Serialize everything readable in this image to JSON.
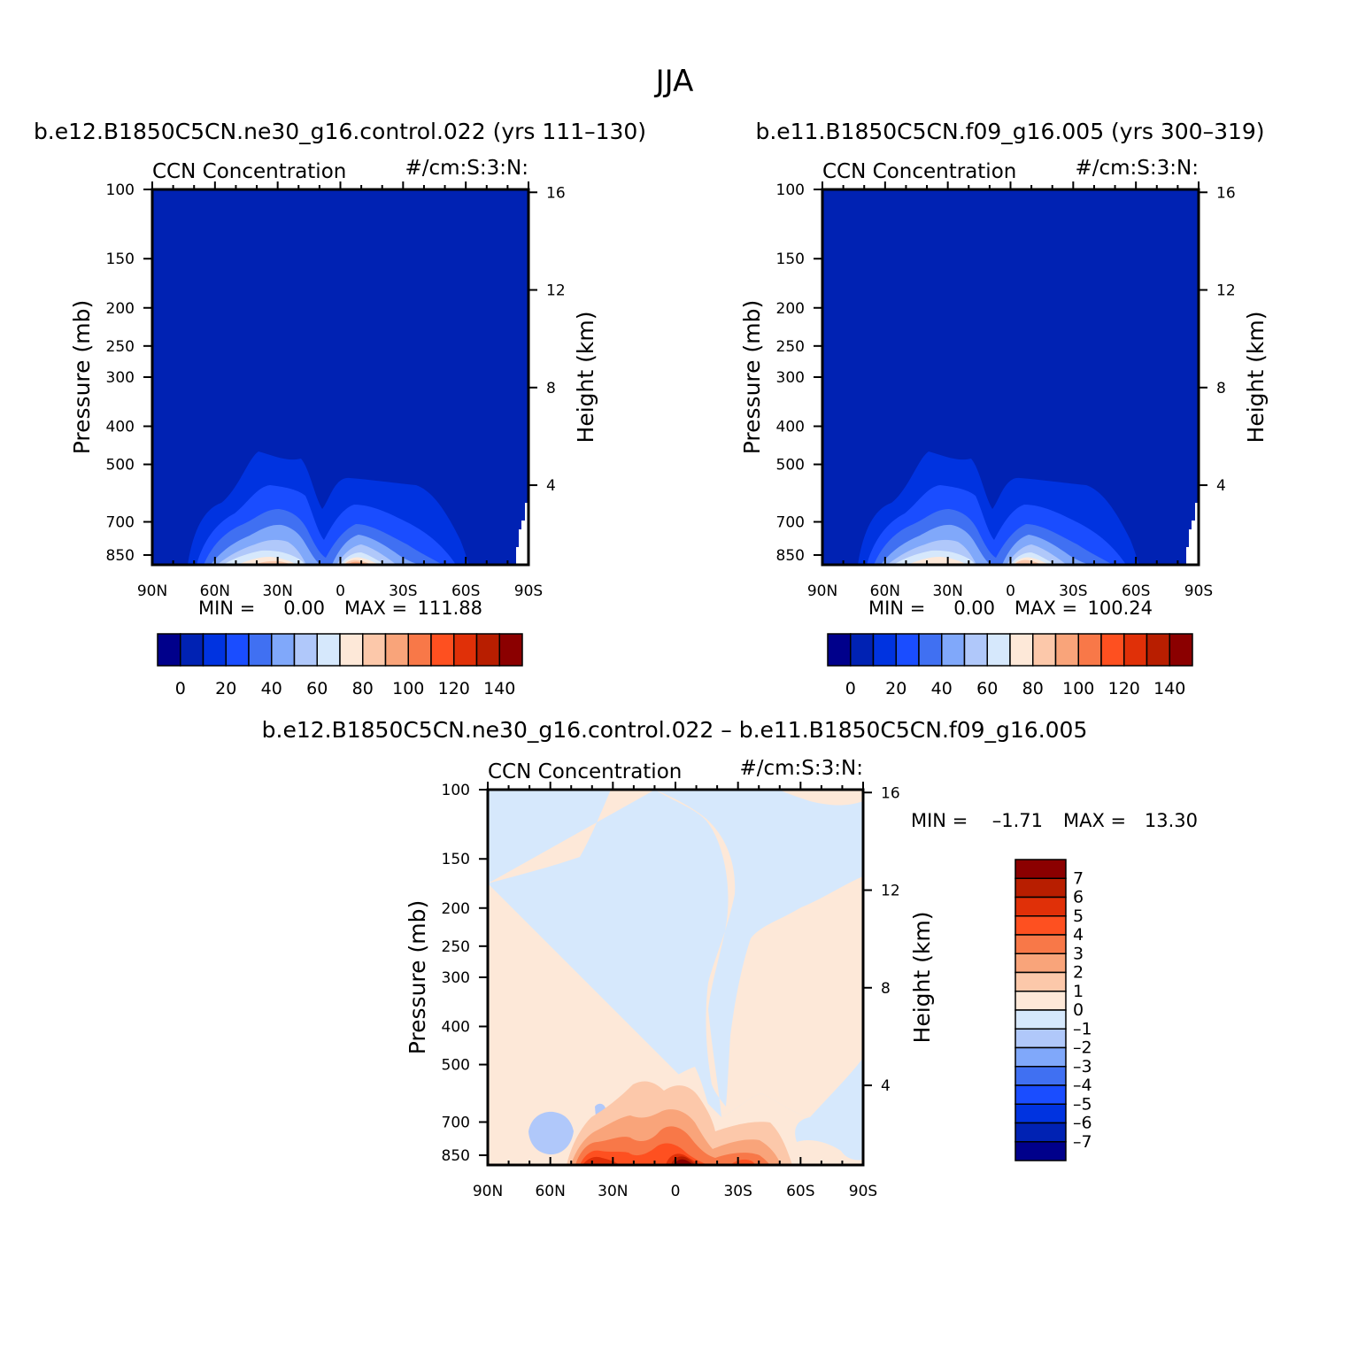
{
  "figure": {
    "title": "JJA",
    "diff_title": "b.e12.B1850C5CN.ne30_g16.control.022 – b.e11.B1850C5CN.f09_g16.005"
  },
  "chart_data": [
    {
      "type": "heatmap",
      "title": "b.e12.B1850C5CN.ne30_g16.control.022 (yrs 111–130)",
      "subtitle_left": "CCN Concentration",
      "subtitle_right": "#/cm:S:3:N:",
      "xlabel": "",
      "ylabel": "Pressure (mb)",
      "ylabel_right": "Height (km)",
      "x_ticks": [
        "90N",
        "60N",
        "30N",
        "0",
        "30S",
        "60S",
        "90S"
      ],
      "y_ticks": [
        "100",
        "150",
        "200",
        "250",
        "300",
        "400",
        "500",
        "700",
        "850"
      ],
      "y_ticks_right": [
        "16",
        "12",
        "8",
        "4"
      ],
      "min_label": "MIN =",
      "min_value": "0.00",
      "max_label": "MAX =",
      "max_value": "111.88",
      "levels": [
        "0",
        "20",
        "40",
        "60",
        "80",
        "100",
        "120",
        "140"
      ],
      "colors": [
        "#00008b",
        "#0022b3",
        "#0033e0",
        "#1a4dff",
        "#4070f2",
        "#80a8fa",
        "#b0c8fa",
        "#d6e8fc",
        "#fde8d8",
        "#fcc8aa",
        "#f9a47a",
        "#f87848",
        "#fe5020",
        "#e03008",
        "#b81e00",
        "#8b0000"
      ]
    },
    {
      "type": "heatmap",
      "title": "b.e11.B1850C5CN.f09_g16.005 (yrs 300–319)",
      "subtitle_left": "CCN Concentration",
      "subtitle_right": "#/cm:S:3:N:",
      "xlabel": "",
      "ylabel": "Pressure (mb)",
      "ylabel_right": "Height (km)",
      "x_ticks": [
        "90N",
        "60N",
        "30N",
        "0",
        "30S",
        "60S",
        "90S"
      ],
      "y_ticks": [
        "100",
        "150",
        "200",
        "250",
        "300",
        "400",
        "500",
        "700",
        "850"
      ],
      "y_ticks_right": [
        "16",
        "12",
        "8",
        "4"
      ],
      "min_label": "MIN =",
      "min_value": "0.00",
      "max_label": "MAX =",
      "max_value": "100.24",
      "levels": [
        "0",
        "20",
        "40",
        "60",
        "80",
        "100",
        "120",
        "140"
      ],
      "colors": [
        "#00008b",
        "#0022b3",
        "#0033e0",
        "#1a4dff",
        "#4070f2",
        "#80a8fa",
        "#b0c8fa",
        "#d6e8fc",
        "#fde8d8",
        "#fcc8aa",
        "#f9a47a",
        "#f87848",
        "#fe5020",
        "#e03008",
        "#b81e00",
        "#8b0000"
      ]
    },
    {
      "type": "heatmap",
      "title": "",
      "subtitle_left": "CCN Concentration",
      "subtitle_right": "#/cm:S:3:N:",
      "xlabel": "",
      "ylabel": "Pressure (mb)",
      "ylabel_right": "Height (km)",
      "x_ticks": [
        "90N",
        "60N",
        "30N",
        "0",
        "30S",
        "60S",
        "90S"
      ],
      "y_ticks": [
        "100",
        "150",
        "200",
        "250",
        "300",
        "400",
        "500",
        "700",
        "850"
      ],
      "y_ticks_right": [
        "16",
        "12",
        "8",
        "4"
      ],
      "min_label": "MIN =",
      "min_value": "–1.71",
      "max_label": "MAX =",
      "max_value": "13.30",
      "levels": [
        "7",
        "6",
        "5",
        "4",
        "3",
        "2",
        "1",
        "0",
        "–1",
        "–2",
        "–3",
        "–4",
        "–5",
        "–6",
        "–7"
      ],
      "colors": [
        "#8b0000",
        "#b81e00",
        "#e03008",
        "#fe5020",
        "#f87848",
        "#f9a47a",
        "#fcc8aa",
        "#fde8d8",
        "#d6e8fc",
        "#b0c8fa",
        "#80a8fa",
        "#4070f2",
        "#1a4dff",
        "#0033e0",
        "#0022b3",
        "#00008b"
      ]
    }
  ]
}
